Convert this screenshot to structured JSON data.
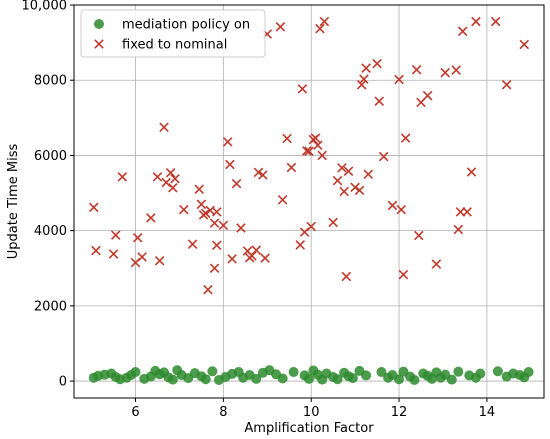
{
  "chart_data": {
    "type": "scatter",
    "title": "",
    "xlabel": "Amplification Factor",
    "ylabel": "Update Time Miss",
    "xlim": [
      4.6,
      15.3
    ],
    "ylim": [
      -450,
      10000
    ],
    "xticks": [
      6,
      8,
      10,
      12,
      14
    ],
    "yticks": [
      0,
      2000,
      4000,
      6000,
      8000,
      10000
    ],
    "ytick_labels": [
      "0",
      "2000",
      "4000",
      "6000",
      "8000",
      "10,000"
    ],
    "grid": true,
    "legend_position": "top-left",
    "series": [
      {
        "name": "mediation policy on",
        "marker": "circle",
        "color": "#2e8b2e",
        "points": [
          [
            5.05,
            90
          ],
          [
            5.15,
            140
          ],
          [
            5.3,
            170
          ],
          [
            5.45,
            200
          ],
          [
            5.55,
            110
          ],
          [
            5.65,
            50
          ],
          [
            5.8,
            90
          ],
          [
            5.9,
            160
          ],
          [
            6.0,
            240
          ],
          [
            6.2,
            60
          ],
          [
            6.35,
            120
          ],
          [
            6.45,
            270
          ],
          [
            6.55,
            180
          ],
          [
            6.65,
            230
          ],
          [
            6.75,
            100
          ],
          [
            6.85,
            40
          ],
          [
            6.95,
            290
          ],
          [
            7.05,
            160
          ],
          [
            7.2,
            80
          ],
          [
            7.35,
            210
          ],
          [
            7.5,
            130
          ],
          [
            7.6,
            50
          ],
          [
            7.75,
            260
          ],
          [
            7.9,
            30
          ],
          [
            8.05,
            110
          ],
          [
            8.2,
            190
          ],
          [
            8.35,
            240
          ],
          [
            8.45,
            90
          ],
          [
            8.6,
            160
          ],
          [
            8.75,
            60
          ],
          [
            8.9,
            220
          ],
          [
            9.05,
            290
          ],
          [
            9.2,
            180
          ],
          [
            9.35,
            70
          ],
          [
            9.6,
            240
          ],
          [
            9.85,
            150
          ],
          [
            9.95,
            60
          ],
          [
            10.05,
            280
          ],
          [
            10.15,
            170
          ],
          [
            10.25,
            40
          ],
          [
            10.35,
            200
          ],
          [
            10.5,
            110
          ],
          [
            10.6,
            50
          ],
          [
            10.75,
            220
          ],
          [
            10.85,
            130
          ],
          [
            10.95,
            80
          ],
          [
            11.1,
            270
          ],
          [
            11.25,
            150
          ],
          [
            11.6,
            240
          ],
          [
            11.75,
            90
          ],
          [
            11.85,
            160
          ],
          [
            12.0,
            50
          ],
          [
            12.1,
            250
          ],
          [
            12.25,
            120
          ],
          [
            12.35,
            30
          ],
          [
            12.55,
            200
          ],
          [
            12.65,
            140
          ],
          [
            12.75,
            60
          ],
          [
            12.85,
            230
          ],
          [
            12.95,
            90
          ],
          [
            13.05,
            170
          ],
          [
            13.2,
            40
          ],
          [
            13.35,
            250
          ],
          [
            13.6,
            150
          ],
          [
            13.75,
            90
          ],
          [
            13.85,
            200
          ],
          [
            14.25,
            260
          ],
          [
            14.45,
            120
          ],
          [
            14.6,
            200
          ],
          [
            14.75,
            160
          ],
          [
            14.85,
            100
          ],
          [
            14.95,
            240
          ]
        ]
      },
      {
        "name": "fixed to nominal",
        "marker": "x",
        "color": "#c0392b",
        "points": [
          [
            5.05,
            4620
          ],
          [
            5.1,
            3470
          ],
          [
            5.5,
            3380
          ],
          [
            5.55,
            3880
          ],
          [
            5.7,
            5430
          ],
          [
            6.0,
            3150
          ],
          [
            6.05,
            3810
          ],
          [
            6.15,
            3300
          ],
          [
            6.35,
            4340
          ],
          [
            6.5,
            5430
          ],
          [
            6.55,
            3200
          ],
          [
            6.65,
            6750
          ],
          [
            6.7,
            5280
          ],
          [
            6.8,
            5540
          ],
          [
            6.85,
            5140
          ],
          [
            6.9,
            5380
          ],
          [
            7.1,
            4560
          ],
          [
            7.3,
            3640
          ],
          [
            7.45,
            5100
          ],
          [
            7.5,
            4700
          ],
          [
            7.55,
            4420
          ],
          [
            7.6,
            4460
          ],
          [
            7.65,
            2430
          ],
          [
            7.7,
            4540
          ],
          [
            7.8,
            4200
          ],
          [
            7.85,
            3610
          ],
          [
            7.85,
            4500
          ],
          [
            7.8,
            3000
          ],
          [
            8.0,
            4140
          ],
          [
            8.1,
            6360
          ],
          [
            8.15,
            5760
          ],
          [
            8.2,
            3250
          ],
          [
            8.3,
            5250
          ],
          [
            8.4,
            4070
          ],
          [
            8.55,
            3460
          ],
          [
            8.6,
            3280
          ],
          [
            8.65,
            3330
          ],
          [
            8.75,
            3480
          ],
          [
            8.8,
            5550
          ],
          [
            8.9,
            5480
          ],
          [
            8.95,
            3270
          ],
          [
            9.0,
            9230
          ],
          [
            9.3,
            9420
          ],
          [
            9.35,
            4820
          ],
          [
            9.45,
            6450
          ],
          [
            9.55,
            5680
          ],
          [
            9.75,
            3620
          ],
          [
            9.8,
            7770
          ],
          [
            9.85,
            3960
          ],
          [
            9.9,
            6120
          ],
          [
            9.95,
            6110
          ],
          [
            10.0,
            4110
          ],
          [
            10.1,
            6460
          ],
          [
            10.05,
            6420
          ],
          [
            10.15,
            6270
          ],
          [
            10.2,
            9370
          ],
          [
            10.25,
            6000
          ],
          [
            10.3,
            9560
          ],
          [
            10.5,
            4220
          ],
          [
            10.6,
            5330
          ],
          [
            10.7,
            5670
          ],
          [
            10.75,
            5040
          ],
          [
            10.8,
            2780
          ],
          [
            10.85,
            5580
          ],
          [
            11.0,
            5150
          ],
          [
            11.1,
            5070
          ],
          [
            11.15,
            7880
          ],
          [
            11.2,
            8030
          ],
          [
            11.25,
            8320
          ],
          [
            11.3,
            5500
          ],
          [
            11.5,
            8440
          ],
          [
            11.55,
            7440
          ],
          [
            11.65,
            5970
          ],
          [
            11.85,
            4670
          ],
          [
            12.0,
            8020
          ],
          [
            12.05,
            4560
          ],
          [
            12.1,
            2830
          ],
          [
            12.15,
            6460
          ],
          [
            12.4,
            8280
          ],
          [
            12.45,
            3870
          ],
          [
            12.5,
            7410
          ],
          [
            12.65,
            7590
          ],
          [
            12.85,
            3110
          ],
          [
            13.05,
            8200
          ],
          [
            13.3,
            8270
          ],
          [
            13.35,
            4030
          ],
          [
            13.4,
            4500
          ],
          [
            13.45,
            9300
          ],
          [
            13.55,
            4500
          ],
          [
            13.65,
            5560
          ],
          [
            13.75,
            9560
          ],
          [
            14.2,
            9560
          ],
          [
            14.45,
            7880
          ],
          [
            14.85,
            8950
          ]
        ]
      }
    ]
  }
}
